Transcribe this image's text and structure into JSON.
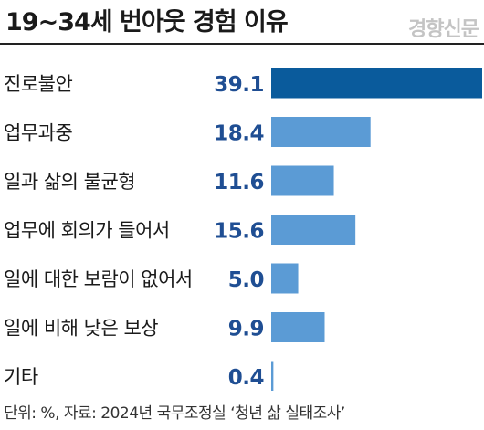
{
  "header": {
    "title": "19~34세 번아웃 경험 이유",
    "brand": "경향신문"
  },
  "footer": {
    "source": "단위: %, 자료: 2024년 국무조정실 ‘청년 삶 실태조사’"
  },
  "colors": {
    "highlight_bar": "#0a5b9c",
    "bar": "#5b9bd5",
    "value_text": "#1f4e93"
  },
  "chart_data": {
    "type": "bar",
    "orientation": "horizontal",
    "unit": "%",
    "categories": [
      "진로불안",
      "업무과중",
      "일과 삶의 불균형",
      "업무에 회의가 들어서",
      "일에 대한 보람이 없어서",
      "일에 비해 낮은 보상",
      "기타"
    ],
    "values": [
      39.1,
      18.4,
      11.6,
      15.6,
      5.0,
      9.9,
      0.4
    ],
    "value_labels": [
      "39.1",
      "18.4",
      "11.6",
      "15.6",
      "5.0",
      "9.9",
      "0.4"
    ],
    "highlight_index": 0,
    "xlim": [
      0,
      39.1
    ],
    "grid": false,
    "legend": "none"
  }
}
